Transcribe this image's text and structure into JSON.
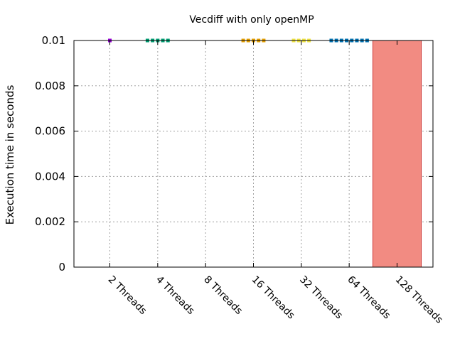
{
  "chart_data": {
    "type": "bar",
    "title": "Vecdiff with only openMP",
    "xlabel": "",
    "ylabel": "Execution time in seconds",
    "ylim": [
      0,
      0.01
    ],
    "yticks": [
      "0",
      "0.002",
      "0.004",
      "0.006",
      "0.008",
      "0.01"
    ],
    "grid": true,
    "legend": "none",
    "categories": [
      "2 Threads",
      "4 Threads",
      "8 Threads",
      "16 Threads",
      "32 Threads",
      "64 Threads",
      "128 Threads"
    ],
    "values": [
      0,
      0,
      0,
      0,
      0,
      0,
      0.01
    ],
    "colors": [
      "#9400d3",
      "#009e73",
      "#56b4e9",
      "#e69f00",
      "#f0e442",
      "#0072b2",
      "#f28b82"
    ],
    "bar_border_colors": [
      "#9400d3",
      "#009e73",
      "#56b4e9",
      "#e69f00",
      "#f0e442",
      "#0072b2",
      "#cc3333"
    ],
    "overflow_markers": [
      1,
      5,
      0,
      5,
      4,
      8,
      0
    ]
  }
}
